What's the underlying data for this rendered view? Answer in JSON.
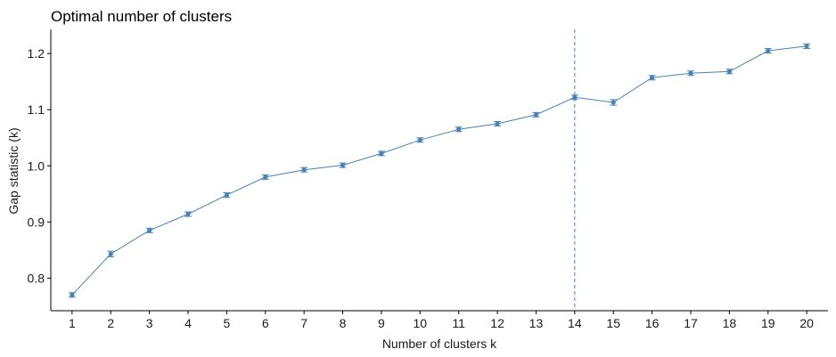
{
  "chart_data": {
    "type": "line",
    "title": "Optimal number of clusters",
    "xlabel": "Number of clusters k",
    "ylabel": "Gap statistic (k)",
    "x": [
      1,
      2,
      3,
      4,
      5,
      6,
      7,
      8,
      9,
      10,
      11,
      12,
      13,
      14,
      15,
      16,
      17,
      18,
      19,
      20
    ],
    "y": [
      0.77,
      0.843,
      0.885,
      0.914,
      0.948,
      0.98,
      0.993,
      1.001,
      1.022,
      1.046,
      1.065,
      1.075,
      1.091,
      1.122,
      1.113,
      1.157,
      1.165,
      1.168,
      1.205,
      1.213
    ],
    "error": [
      0.004,
      0.005,
      0.004,
      0.004,
      0.004,
      0.004,
      0.004,
      0.004,
      0.004,
      0.004,
      0.004,
      0.004,
      0.004,
      0.004,
      0.005,
      0.004,
      0.004,
      0.004,
      0.004,
      0.004
    ],
    "xticks": [
      "1",
      "2",
      "3",
      "4",
      "5",
      "6",
      "7",
      "8",
      "9",
      "10",
      "11",
      "12",
      "13",
      "14",
      "15",
      "16",
      "17",
      "18",
      "19",
      "20"
    ],
    "yticks": [
      0.8,
      0.9,
      1.0,
      1.1,
      1.2
    ],
    "ytick_labels": [
      "0.8",
      "0.9",
      "1.0",
      "1.1",
      "1.2"
    ],
    "ylim": [
      0.742,
      1.243
    ],
    "xlim": [
      0.45,
      20.55
    ],
    "optimal_k": 14,
    "grid": false,
    "legend": "none",
    "colors": {
      "series": "#4682b4",
      "axis": "#000000",
      "vline": "#4682b4"
    }
  }
}
